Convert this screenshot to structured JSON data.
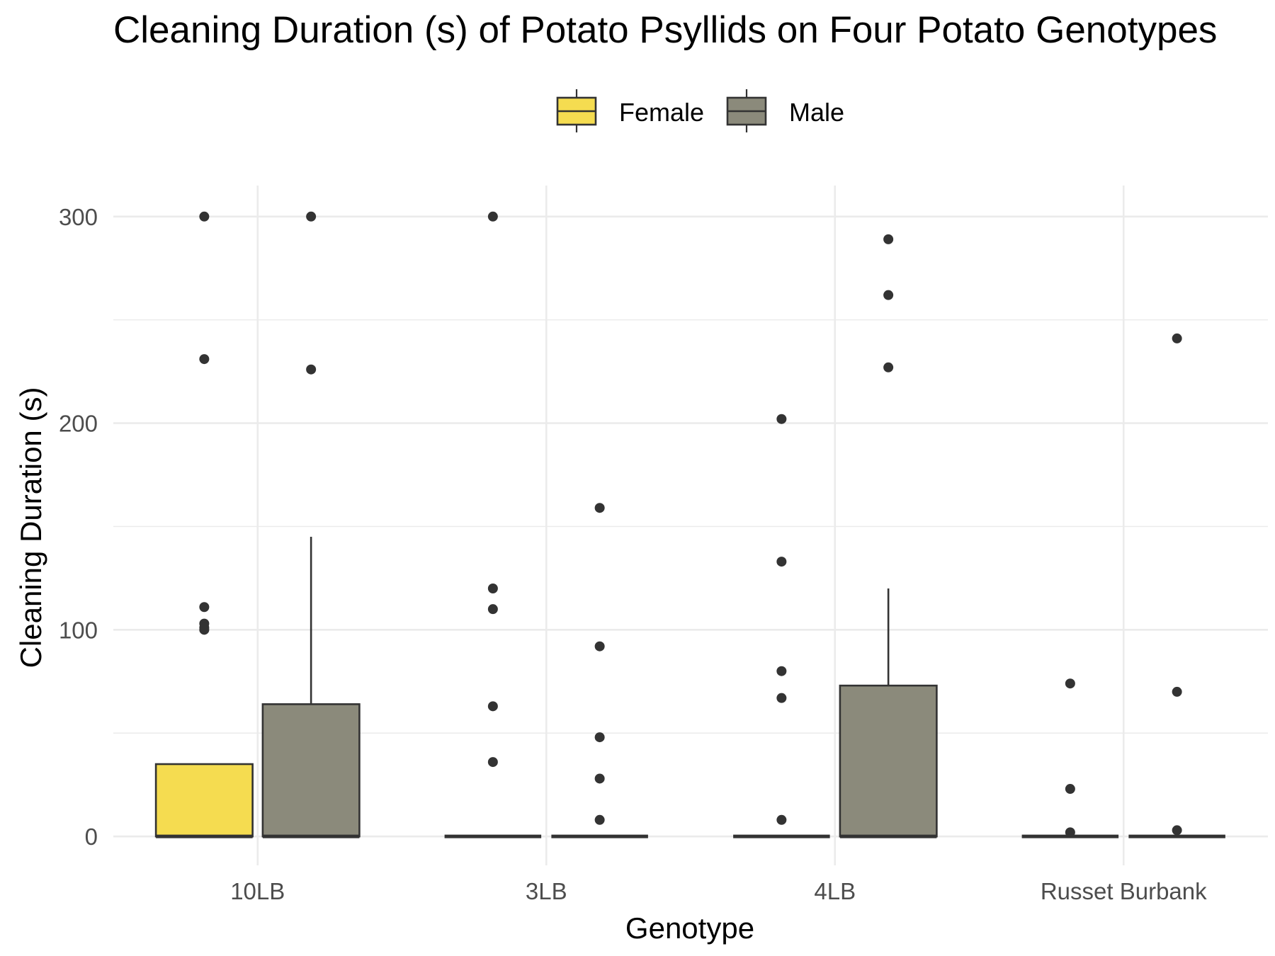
{
  "chart_data": {
    "type": "box",
    "title": "Cleaning Duration (s) of Potato Psyllids on Four Potato Genotypes",
    "xlabel": "Genotype",
    "ylabel": "Cleaning Duration (s)",
    "ylim": [
      -14,
      315
    ],
    "yticks": [
      0,
      100,
      200,
      300
    ],
    "grid": true,
    "legend_position": "top",
    "categories": [
      "10LB",
      "3LB",
      "4LB",
      "Russet Burbank"
    ],
    "series": [
      {
        "name": "Female",
        "color": "#f5dc50",
        "boxes": [
          {
            "category": "10LB",
            "min": 0,
            "q1": 0,
            "median": 0,
            "q3": 35,
            "max": 35,
            "outliers": [
              300,
              231,
              111,
              103,
              101,
              100
            ]
          },
          {
            "category": "3LB",
            "min": 0,
            "q1": 0,
            "median": 0,
            "q3": 0,
            "max": 0,
            "outliers": [
              300,
              120,
              110,
              63,
              36
            ]
          },
          {
            "category": "4LB",
            "min": 0,
            "q1": 0,
            "median": 0,
            "q3": 0,
            "max": 0,
            "outliers": [
              202,
              133,
              80,
              67,
              8
            ]
          },
          {
            "category": "Russet Burbank",
            "min": 0,
            "q1": 0,
            "median": 0,
            "q3": 0,
            "max": 0,
            "outliers": [
              74,
              23,
              2
            ]
          }
        ]
      },
      {
        "name": "Male",
        "color": "#8b8a7b",
        "boxes": [
          {
            "category": "10LB",
            "min": 0,
            "q1": 0,
            "median": 0,
            "q3": 64,
            "max": 145,
            "outliers": [
              300,
              226
            ]
          },
          {
            "category": "3LB",
            "min": 0,
            "q1": 0,
            "median": 0,
            "q3": 0,
            "max": 0,
            "outliers": [
              159,
              92,
              48,
              28,
              8
            ]
          },
          {
            "category": "4LB",
            "min": 0,
            "q1": 0,
            "median": 0,
            "q3": 73,
            "max": 120,
            "outliers": [
              289,
              262,
              227
            ]
          },
          {
            "category": "Russet Burbank",
            "min": 0,
            "q1": 0,
            "median": 0,
            "q3": 0,
            "max": 0,
            "outliers": [
              241,
              70,
              3
            ]
          }
        ]
      }
    ]
  }
}
